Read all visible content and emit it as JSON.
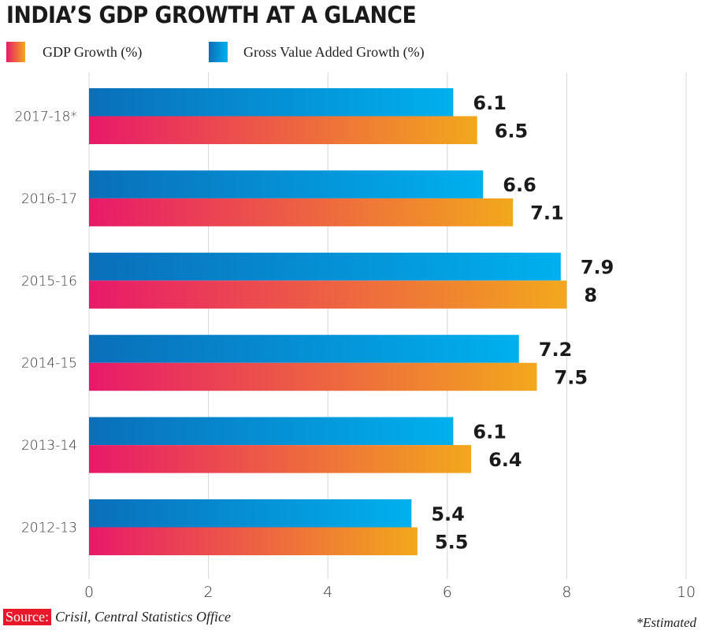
{
  "chart_data": {
    "type": "bar",
    "orientation": "horizontal",
    "title": "INDIA’S GDP GROWTH AT A GLANCE",
    "categories": [
      "2017-18*",
      "2016-17",
      "2015-16",
      "2014-15",
      "2013-14",
      "2012-13"
    ],
    "series": [
      {
        "name": "Gross Value Added Growth (%)",
        "values": [
          6.1,
          6.6,
          7.9,
          7.2,
          6.1,
          5.4
        ],
        "colors": [
          "#0a6fba",
          "#00b0ee"
        ]
      },
      {
        "name": "GDP Growth (%)",
        "values": [
          6.5,
          7.1,
          8,
          7.5,
          6.4,
          5.5
        ],
        "colors": [
          "#e8196a",
          "#f2a81c"
        ]
      }
    ],
    "xlim": [
      0,
      10
    ],
    "xticks": [
      0,
      2,
      4,
      6,
      8,
      10
    ],
    "grid": true,
    "legend_placement": "top-left",
    "source_label": "Source:",
    "source": "Crisil, Central Statistics Office",
    "footnote": "*Estimated"
  }
}
